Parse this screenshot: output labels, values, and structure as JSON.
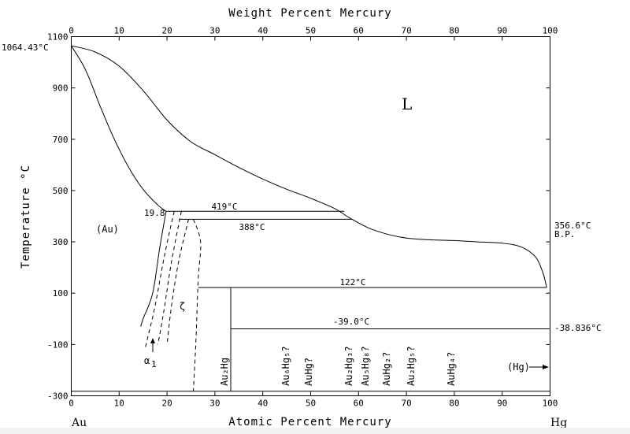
{
  "chart_data": {
    "type": "line",
    "title": "",
    "top_axis": {
      "label": "Weight Percent Mercury",
      "ticks": [
        0,
        10,
        20,
        30,
        40,
        50,
        60,
        70,
        80,
        90,
        100
      ]
    },
    "xlabel": "Atomic Percent Mercury",
    "ylabel": "Temperature °C",
    "xlim": [
      0,
      100
    ],
    "ylim": [
      -300,
      1100
    ],
    "x_ticks": [
      0,
      10,
      20,
      30,
      40,
      50,
      60,
      70,
      80,
      90,
      100
    ],
    "y_ticks": [
      -300,
      -100,
      100,
      300,
      500,
      700,
      900,
      1100
    ],
    "grid": false,
    "x_end_labels": {
      "left": "Au",
      "right": "Hg"
    },
    "series": [
      {
        "style": "solid",
        "points": [
          [
            0,
            1064.43
          ],
          [
            5,
            1040
          ],
          [
            10,
            985
          ],
          [
            15,
            890
          ],
          [
            20,
            775
          ],
          [
            25,
            690
          ],
          [
            30,
            640
          ],
          [
            35,
            590
          ],
          [
            40,
            545
          ],
          [
            45,
            505
          ],
          [
            50,
            470
          ],
          [
            55,
            430
          ],
          [
            58,
            395
          ],
          [
            62,
            355
          ],
          [
            66,
            330
          ],
          [
            70,
            315
          ],
          [
            75,
            308
          ],
          [
            80,
            305
          ],
          [
            85,
            300
          ],
          [
            90,
            295
          ],
          [
            94,
            280
          ],
          [
            97,
            240
          ],
          [
            98.5,
            180
          ],
          [
            99.3,
            122
          ]
        ]
      },
      {
        "style": "solid",
        "points": [
          [
            0,
            1064.43
          ],
          [
            3,
            970
          ],
          [
            6,
            830
          ],
          [
            9,
            700
          ],
          [
            12,
            590
          ],
          [
            15,
            505
          ],
          [
            18,
            445
          ],
          [
            19.8,
            419
          ]
        ]
      },
      {
        "style": "solid",
        "points": [
          [
            19.8,
            419
          ],
          [
            18.5,
            280
          ],
          [
            17,
            100
          ],
          [
            15,
            0
          ],
          [
            14.5,
            -30
          ]
        ]
      },
      {
        "style": "dashed",
        "points": [
          [
            21.5,
            419
          ],
          [
            19.5,
            250
          ],
          [
            17.5,
            50
          ],
          [
            16,
            -70
          ],
          [
            15.5,
            -110
          ]
        ]
      },
      {
        "style": "dashed",
        "points": [
          [
            23,
            419
          ],
          [
            21,
            230
          ],
          [
            19.5,
            50
          ],
          [
            18.5,
            -60
          ],
          [
            18,
            -100
          ]
        ]
      },
      {
        "style": "dashed",
        "points": [
          [
            24.5,
            388
          ],
          [
            22.5,
            230
          ],
          [
            21,
            60
          ],
          [
            20,
            -100
          ]
        ]
      },
      {
        "style": "dashed",
        "points": [
          [
            25.5,
            388
          ],
          [
            27,
            300
          ],
          [
            26.5,
            150
          ],
          [
            26,
            -100
          ],
          [
            25.5,
            -282
          ]
        ]
      },
      {
        "style": "solid",
        "points": [
          [
            19.8,
            419
          ],
          [
            57,
            419
          ]
        ]
      },
      {
        "style": "solid",
        "points": [
          [
            22.5,
            388
          ],
          [
            58.5,
            388
          ]
        ]
      },
      {
        "style": "solid",
        "points": [
          [
            26.5,
            122
          ],
          [
            99.3,
            122
          ]
        ]
      },
      {
        "style": "solid",
        "points": [
          [
            33.3,
            122
          ],
          [
            33.3,
            -282
          ]
        ]
      },
      {
        "style": "solid",
        "points": [
          [
            33.3,
            -39
          ],
          [
            100,
            -39
          ]
        ]
      },
      {
        "style": "solid",
        "points": [
          [
            0,
            -282
          ],
          [
            100,
            -282
          ]
        ]
      }
    ],
    "annotations": {
      "melting_point": "1064.43°C",
      "boiling_point": "356.6°C",
      "boiling_point_note": "B.P.",
      "hg_melting": "-38.836°C",
      "isotherm_419": "419°C",
      "isotherm_388": "388°C",
      "isotherm_122": "122°C",
      "isotherm_m39": "-39.0°C",
      "comp_19_8": "19.8",
      "phases": {
        "liquid": "L",
        "au": "(Au)",
        "hg": "(Hg)",
        "zeta": "ζ",
        "alpha1": "α",
        "alpha1_sub": "1",
        "au2hg": "Au₂Hg",
        "au6hg5": "Au₆Hg₅?",
        "auhg": "AuHg?",
        "au2hg3": "Au₂Hg₃?",
        "au5hg8": "Au₅Hg₈?",
        "auhg2": "AuHg₂?",
        "au2hg5": "Au₂Hg₅?",
        "auhg4": "AuHg₄?"
      }
    }
  }
}
